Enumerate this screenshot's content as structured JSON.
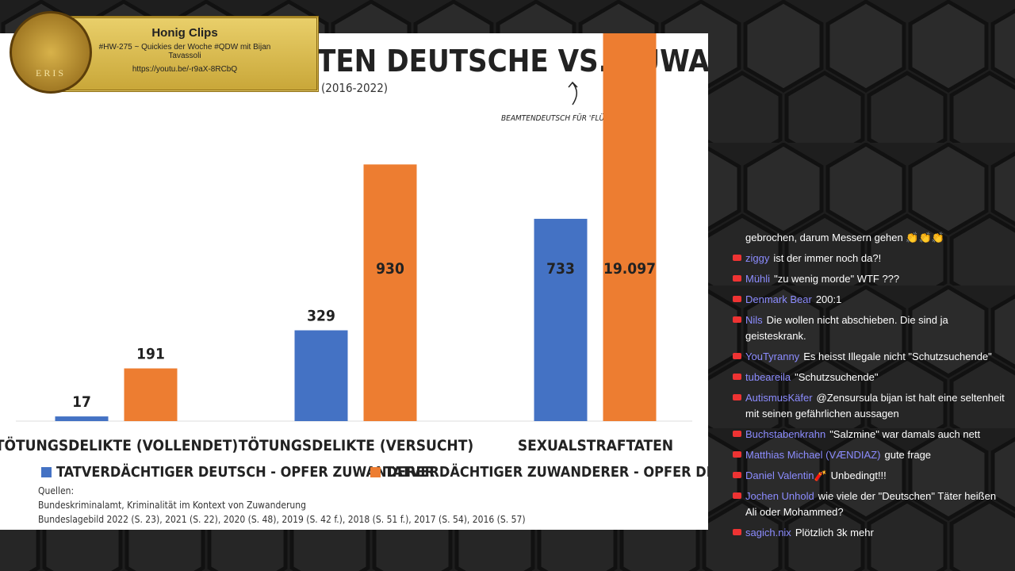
{
  "overlay": {
    "brand": "ERIS",
    "title": "Honig Clips",
    "subtitle": "#HW-275 ~ Quickies der Woche #QDW mit Bijan Tavassoli",
    "url": "https://youtu.be/-r9aX-8RCbQ"
  },
  "chart_data": {
    "type": "bar",
    "title": "TEN DEUTSCHE VS. ZUWANDERER",
    "subtitle": "(2016-2022)",
    "annotation": "BEAMTENDEUTSCH FÜR 'FLÜCHTLINGE'",
    "categories": [
      "TÖTUNGSDELIKTE (VOLLENDET)",
      "TÖTUNGSDELIKTE (VERSUCHT)",
      "SEXUALSTRAFTATEN"
    ],
    "series": [
      {
        "name": "TATVERDÄCHTIGER DEUTSCH - OPFER ZUWANDERER",
        "color": "#4472c4",
        "values": [
          17,
          329,
          733
        ]
      },
      {
        "name": "TATVERDÄCHTIGER ZUWANDERER - OPFER DEUTSCH",
        "color": "#ed7d31",
        "values": [
          191,
          930,
          19097
        ],
        "value_labels": [
          "191",
          "930",
          "19.097"
        ]
      }
    ],
    "sources": [
      "Quellen:",
      "Bundeskriminalamt, Kriminalität im Kontext von Zuwanderung",
      "Bundeslagebild 2022 (S. 23), 2021 (S. 22), 2020 (S. 48), 2019 (S. 42 f.), 2018 (S. 51 f.), 2017 (S. 54), 2016 (S. 57)"
    ]
  },
  "chat": [
    {
      "user": "",
      "text": "gebrochen, darum Messern gehen 👏👏👏"
    },
    {
      "user": "ziggy",
      "text": "ist der immer noch da?!"
    },
    {
      "user": "Mühli",
      "text": "\"zu wenig morde\" WTF ???"
    },
    {
      "user": "Denmark Bear",
      "text": "200:1"
    },
    {
      "user": "Nils",
      "text": "Die wollen nicht abschieben. Die sind ja geisteskrank."
    },
    {
      "user": "YouTyranny",
      "text": "Es heisst Illegale nicht \"Schutzsuchende\""
    },
    {
      "user": "tubeareila",
      "text": "\"Schutzsuchende\""
    },
    {
      "user": "AutismusKäfer",
      "text": "@Zensursula bijan ist halt eine seltenheit mit seinen gefährlichen aussagen"
    },
    {
      "user": "Buchstabenkrahn",
      "text": "\"Salzmine\" war damals auch nett"
    },
    {
      "user": "Matthias Michael (VÆNDIAZ)",
      "text": "gute frage"
    },
    {
      "user": "Daniel Valentin🧨",
      "text": "Unbedingt!!!"
    },
    {
      "user": "Jochen Unhold",
      "text": "wie viele der \"Deutschen\" Täter heißen Ali oder Mohammed?"
    },
    {
      "user": "sagich.nix",
      "text": "Plötzlich 3k mehr"
    }
  ]
}
